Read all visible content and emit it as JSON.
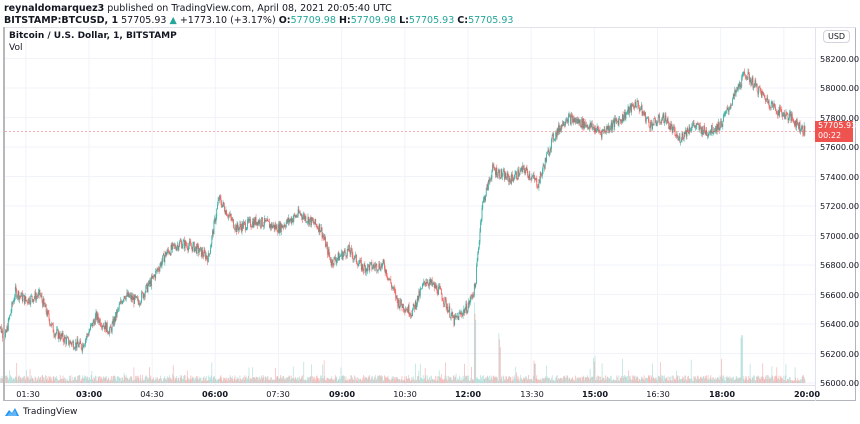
{
  "header": {
    "publisher": "reynaldomarquez3",
    "published_text": "published on TradingView.com, April 08, 2021 20:05:40 UTC",
    "symbol": "BITSTAMP:BTCUSD, 1",
    "last_price": "57705.93",
    "change_arrow": "▲",
    "change": "+1773.10 (+3.17%)",
    "o_label": "O:",
    "o_value": "57709.98",
    "h_label": "H:",
    "h_value": "57709.98",
    "l_label": "L:",
    "l_value": "57705.93",
    "c_label": "C:",
    "c_value": "57705.93"
  },
  "legend": {
    "title": "Bitcoin / U.S. Dollar, 1, BITSTAMP",
    "volume": "Vol"
  },
  "price_axis": {
    "currency": "USD",
    "labels": [
      "58200.00",
      "58000.00",
      "57800.00",
      "57600.00",
      "57400.00",
      "57200.00",
      "57000.00",
      "56800.00",
      "56600.00",
      "56400.00",
      "56200.00",
      "56000.00"
    ],
    "current_price": "57705.93",
    "countdown": "00:22"
  },
  "time_axis": {
    "labels": [
      {
        "text": "01:30",
        "bold": false
      },
      {
        "text": "03:00",
        "bold": true
      },
      {
        "text": "04:30",
        "bold": false
      },
      {
        "text": "06:00",
        "bold": true
      },
      {
        "text": "07:30",
        "bold": false
      },
      {
        "text": "09:00",
        "bold": true
      },
      {
        "text": "10:30",
        "bold": false
      },
      {
        "text": "12:00",
        "bold": true
      },
      {
        "text": "13:30",
        "bold": false
      },
      {
        "text": "15:00",
        "bold": true
      },
      {
        "text": "16:30",
        "bold": false
      },
      {
        "text": "18:00",
        "bold": true
      },
      {
        "text": "20:00",
        "bold": true
      }
    ]
  },
  "footer": {
    "brand": "TradingView"
  },
  "colors": {
    "up": "#26a69a",
    "down": "#ef5350",
    "up_light": "#9fd8d2",
    "down_light": "#f5a3a1",
    "grid": "#f0f3fa",
    "price_line": "#ef5350"
  },
  "chart_data": {
    "type": "candlestick",
    "title": "Bitcoin / U.S. Dollar, 1, BITSTAMP",
    "xlabel": "",
    "ylabel": "USD",
    "ylim": [
      56000,
      58300
    ],
    "grid": true,
    "x_ticks": [
      "01:30",
      "03:00",
      "04:30",
      "06:00",
      "07:30",
      "09:00",
      "10:30",
      "12:00",
      "13:30",
      "15:00",
      "16:30",
      "18:00",
      "20:00"
    ],
    "y_ticks": [
      56000,
      56200,
      56400,
      56600,
      56800,
      57000,
      57200,
      57400,
      57600,
      57800,
      58000,
      58200
    ],
    "close_path": [
      {
        "t": "00:50",
        "price": 56420
      },
      {
        "t": "01:00",
        "price": 56300
      },
      {
        "t": "01:15",
        "price": 56620
      },
      {
        "t": "01:30",
        "price": 56560
      },
      {
        "t": "01:50",
        "price": 56600
      },
      {
        "t": "02:10",
        "price": 56350
      },
      {
        "t": "02:30",
        "price": 56280
      },
      {
        "t": "02:50",
        "price": 56250
      },
      {
        "t": "03:10",
        "price": 56450
      },
      {
        "t": "03:30",
        "price": 56350
      },
      {
        "t": "03:50",
        "price": 56600
      },
      {
        "t": "04:10",
        "price": 56550
      },
      {
        "t": "04:30",
        "price": 56700
      },
      {
        "t": "04:50",
        "price": 56880
      },
      {
        "t": "05:10",
        "price": 56950
      },
      {
        "t": "05:30",
        "price": 56920
      },
      {
        "t": "05:50",
        "price": 56850
      },
      {
        "t": "06:05",
        "price": 57250
      },
      {
        "t": "06:30",
        "price": 57050
      },
      {
        "t": "07:00",
        "price": 57100
      },
      {
        "t": "07:30",
        "price": 57050
      },
      {
        "t": "08:00",
        "price": 57150
      },
      {
        "t": "08:30",
        "price": 57050
      },
      {
        "t": "08:45",
        "price": 56820
      },
      {
        "t": "09:10",
        "price": 56900
      },
      {
        "t": "09:30",
        "price": 56780
      },
      {
        "t": "10:00",
        "price": 56800
      },
      {
        "t": "10:20",
        "price": 56550
      },
      {
        "t": "10:40",
        "price": 56480
      },
      {
        "t": "11:00",
        "price": 56700
      },
      {
        "t": "11:20",
        "price": 56620
      },
      {
        "t": "11:40",
        "price": 56420
      },
      {
        "t": "12:00",
        "price": 56520
      },
      {
        "t": "12:10",
        "price": 56650
      },
      {
        "t": "12:20",
        "price": 57200
      },
      {
        "t": "12:35",
        "price": 57450
      },
      {
        "t": "13:00",
        "price": 57380
      },
      {
        "t": "13:20",
        "price": 57450
      },
      {
        "t": "13:40",
        "price": 57350
      },
      {
        "t": "14:00",
        "price": 57650
      },
      {
        "t": "14:20",
        "price": 57800
      },
      {
        "t": "14:50",
        "price": 57750
      },
      {
        "t": "15:10",
        "price": 57700
      },
      {
        "t": "15:40",
        "price": 57800
      },
      {
        "t": "16:00",
        "price": 57900
      },
      {
        "t": "16:20",
        "price": 57750
      },
      {
        "t": "16:40",
        "price": 57800
      },
      {
        "t": "17:00",
        "price": 57650
      },
      {
        "t": "17:20",
        "price": 57750
      },
      {
        "t": "17:40",
        "price": 57700
      },
      {
        "t": "18:00",
        "price": 57750
      },
      {
        "t": "18:20",
        "price": 57950
      },
      {
        "t": "18:35",
        "price": 58100
      },
      {
        "t": "19:00",
        "price": 57950
      },
      {
        "t": "19:20",
        "price": 57850
      },
      {
        "t": "19:40",
        "price": 57800
      },
      {
        "t": "20:00",
        "price": 57705.93
      }
    ],
    "high": 58130,
    "low": 56180,
    "last": 57705.93,
    "change": 1773.1,
    "change_pct": 3.17,
    "volume_spikes": [
      {
        "t": "12:10",
        "relative": 1.0
      },
      {
        "t": "12:45",
        "relative": 0.6
      },
      {
        "t": "13:35",
        "relative": 0.3
      },
      {
        "t": "15:00",
        "relative": 0.35
      },
      {
        "t": "18:30",
        "relative": 0.75
      }
    ]
  }
}
